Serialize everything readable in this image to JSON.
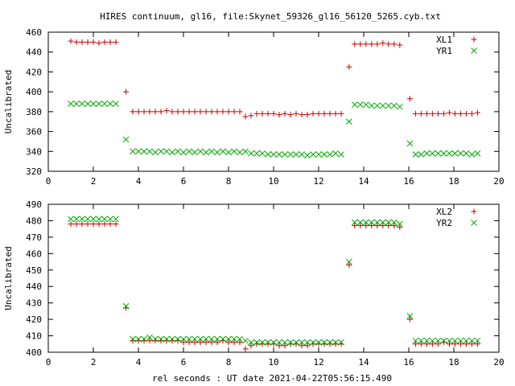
{
  "title": "HIRES continuum, gl16, file:Skynet_59326_gl16_56120_5265.cyb.txt",
  "xlabel": "rel seconds : UT date 2021-04-22T05:56:15.490",
  "chart_data": [
    {
      "type": "scatter",
      "ylabel": "Uncalibrated",
      "xlim": [
        0,
        20
      ],
      "ylim": [
        320,
        460
      ],
      "xticks": [
        0,
        2,
        4,
        6,
        8,
        10,
        12,
        14,
        16,
        18,
        20
      ],
      "yticks": [
        320,
        340,
        360,
        380,
        400,
        420,
        440,
        460
      ],
      "legend_position": "top-right",
      "series": [
        {
          "name": "XL1",
          "marker": "plus",
          "color": "#cc0000",
          "x": [
            1.0,
            1.25,
            1.5,
            1.75,
            2.0,
            2.25,
            2.5,
            2.75,
            3.0,
            3.45,
            3.75,
            4.0,
            4.25,
            4.5,
            4.75,
            5.0,
            5.25,
            5.5,
            5.75,
            6.0,
            6.25,
            6.5,
            6.75,
            7.0,
            7.25,
            7.5,
            7.75,
            8.0,
            8.25,
            8.5,
            8.75,
            9.0,
            9.25,
            9.5,
            9.75,
            10.0,
            10.25,
            10.5,
            10.75,
            11.0,
            11.25,
            11.5,
            11.75,
            12.0,
            12.25,
            12.5,
            12.75,
            13.0,
            13.35,
            13.6,
            13.85,
            14.1,
            14.35,
            14.6,
            14.85,
            15.1,
            15.35,
            15.6,
            16.05,
            16.3,
            16.55,
            16.8,
            17.05,
            17.3,
            17.55,
            17.8,
            18.05,
            18.3,
            18.55,
            18.8,
            19.05
          ],
          "y": [
            451,
            450,
            450,
            450,
            450,
            449,
            450,
            450,
            450,
            400,
            380,
            380,
            380,
            380,
            380,
            380,
            381,
            380,
            380,
            380,
            380,
            380,
            380,
            380,
            380,
            380,
            380,
            380,
            380,
            380,
            375,
            376,
            378,
            378,
            378,
            378,
            377,
            378,
            377,
            378,
            377,
            377,
            378,
            378,
            378,
            378,
            378,
            378,
            425,
            448,
            448,
            448,
            448,
            448,
            449,
            448,
            448,
            447,
            393,
            378,
            378,
            378,
            378,
            378,
            378,
            379,
            378,
            378,
            378,
            378,
            379
          ]
        },
        {
          "name": "YR1",
          "marker": "cross",
          "color": "#00aa00",
          "x": [
            1.0,
            1.25,
            1.5,
            1.75,
            2.0,
            2.25,
            2.5,
            2.75,
            3.0,
            3.45,
            3.75,
            4.0,
            4.25,
            4.5,
            4.75,
            5.0,
            5.25,
            5.5,
            5.75,
            6.0,
            6.25,
            6.5,
            6.75,
            7.0,
            7.25,
            7.5,
            7.75,
            8.0,
            8.25,
            8.5,
            8.75,
            9.0,
            9.25,
            9.5,
            9.75,
            10.0,
            10.25,
            10.5,
            10.75,
            11.0,
            11.25,
            11.5,
            11.75,
            12.0,
            12.25,
            12.5,
            12.75,
            13.0,
            13.35,
            13.6,
            13.85,
            14.1,
            14.35,
            14.6,
            14.85,
            15.1,
            15.35,
            15.6,
            16.05,
            16.3,
            16.55,
            16.8,
            17.05,
            17.3,
            17.55,
            17.8,
            18.05,
            18.3,
            18.55,
            18.8,
            19.05
          ],
          "y": [
            388,
            388,
            388,
            388,
            388,
            388,
            388,
            388,
            388,
            352,
            340,
            340,
            340,
            340,
            339,
            340,
            340,
            339,
            340,
            339,
            340,
            339,
            340,
            339,
            340,
            339,
            340,
            339,
            340,
            339,
            340,
            338,
            338,
            338,
            337,
            337,
            337,
            337,
            337,
            337,
            337,
            336,
            337,
            337,
            337,
            337,
            338,
            337,
            370,
            387,
            387,
            387,
            386,
            386,
            386,
            386,
            386,
            385,
            348,
            337,
            337,
            338,
            338,
            338,
            338,
            338,
            338,
            338,
            338,
            337,
            338
          ]
        }
      ]
    },
    {
      "type": "scatter",
      "ylabel": "Uncalibrated",
      "xlim": [
        0,
        20
      ],
      "ylim": [
        400,
        490
      ],
      "xticks": [
        0,
        2,
        4,
        6,
        8,
        10,
        12,
        14,
        16,
        18,
        20
      ],
      "yticks": [
        400,
        410,
        420,
        430,
        440,
        450,
        460,
        470,
        480,
        490
      ],
      "legend_position": "top-right",
      "series": [
        {
          "name": "XL2",
          "marker": "plus",
          "color": "#cc0000",
          "x": [
            1.0,
            1.25,
            1.5,
            1.75,
            2.0,
            2.25,
            2.5,
            2.75,
            3.0,
            3.45,
            3.75,
            4.0,
            4.25,
            4.5,
            4.75,
            5.0,
            5.25,
            5.5,
            5.75,
            6.0,
            6.25,
            6.5,
            6.75,
            7.0,
            7.25,
            7.5,
            7.75,
            8.0,
            8.25,
            8.5,
            8.75,
            9.0,
            9.25,
            9.5,
            9.75,
            10.0,
            10.25,
            10.5,
            10.75,
            11.0,
            11.25,
            11.5,
            11.75,
            12.0,
            12.25,
            12.5,
            12.75,
            13.0,
            13.35,
            13.6,
            13.85,
            14.1,
            14.35,
            14.6,
            14.85,
            15.1,
            15.35,
            15.6,
            16.05,
            16.3,
            16.55,
            16.8,
            17.05,
            17.3,
            17.55,
            17.8,
            18.05,
            18.3,
            18.55,
            18.8,
            19.05
          ],
          "y": [
            478,
            478,
            478,
            478,
            478,
            478,
            478,
            478,
            478,
            427,
            407,
            407,
            407,
            407,
            407,
            407,
            407,
            407,
            407,
            406,
            406,
            406,
            406,
            406,
            406,
            406,
            407,
            406,
            406,
            406,
            402,
            404,
            405,
            405,
            405,
            405,
            404,
            404,
            405,
            405,
            404,
            404,
            405,
            405,
            405,
            405,
            405,
            405,
            453,
            477,
            477,
            477,
            477,
            477,
            477,
            477,
            477,
            476,
            420,
            405,
            405,
            405,
            405,
            405,
            406,
            405,
            405,
            405,
            405,
            405,
            405
          ]
        },
        {
          "name": "YR2",
          "marker": "cross",
          "color": "#00aa00",
          "x": [
            1.0,
            1.25,
            1.5,
            1.75,
            2.0,
            2.25,
            2.5,
            2.75,
            3.0,
            3.45,
            3.75,
            4.0,
            4.25,
            4.5,
            4.75,
            5.0,
            5.25,
            5.5,
            5.75,
            6.0,
            6.25,
            6.5,
            6.75,
            7.0,
            7.25,
            7.5,
            7.75,
            8.0,
            8.25,
            8.5,
            8.75,
            9.0,
            9.25,
            9.5,
            9.75,
            10.0,
            10.25,
            10.5,
            10.75,
            11.0,
            11.25,
            11.5,
            11.75,
            12.0,
            12.25,
            12.5,
            12.75,
            13.0,
            13.35,
            13.6,
            13.85,
            14.1,
            14.35,
            14.6,
            14.85,
            15.1,
            15.35,
            15.6,
            16.05,
            16.3,
            16.55,
            16.8,
            17.05,
            17.3,
            17.55,
            17.8,
            18.05,
            18.3,
            18.55,
            18.8,
            19.05
          ],
          "y": [
            481,
            481,
            481,
            481,
            481,
            481,
            481,
            481,
            481,
            428,
            408,
            408,
            408,
            409,
            408,
            408,
            408,
            408,
            408,
            408,
            408,
            408,
            408,
            408,
            408,
            408,
            408,
            408,
            408,
            408,
            407,
            406,
            406,
            406,
            406,
            406,
            406,
            406,
            406,
            406,
            406,
            406,
            406,
            406,
            406,
            406,
            406,
            406,
            455,
            479,
            479,
            479,
            479,
            479,
            479,
            479,
            479,
            478,
            422,
            407,
            407,
            407,
            407,
            407,
            407,
            407,
            407,
            407,
            407,
            407,
            407
          ]
        }
      ]
    }
  ]
}
